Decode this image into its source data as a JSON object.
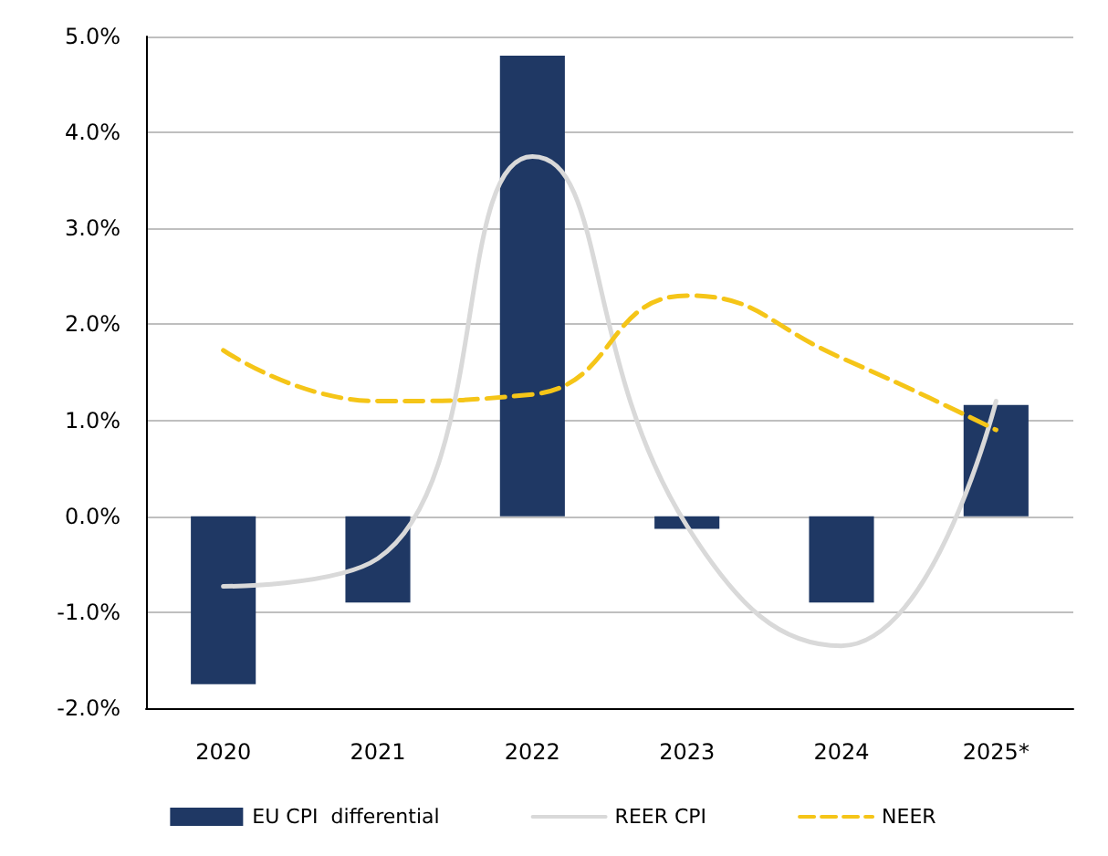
{
  "chart_data": {
    "type": "bar",
    "categories": [
      "2020",
      "2021",
      "2022",
      "2023",
      "2024",
      "2025*"
    ],
    "series": [
      {
        "name": "EU CPI  differential",
        "color": "#1f3864",
        "values": [
          -1.75,
          -0.9,
          4.8,
          -0.13,
          -0.9,
          1.16
        ]
      },
      {
        "name": "REER CPI",
        "type": "line",
        "color": "#d9d9d9",
        "line_style": "solid",
        "values": [
          -0.73,
          -0.44,
          3.75,
          -0.1,
          -1.35,
          1.2
        ]
      },
      {
        "name": "NEER",
        "type": "line",
        "color": "#f5c518",
        "line_style": "dashed",
        "values": [
          1.73,
          1.2,
          1.27,
          2.3,
          1.65,
          0.9
        ]
      }
    ],
    "ylim": [
      -2,
      5
    ],
    "yticks": [
      {
        "value": -2,
        "label": "-2.0%"
      },
      {
        "value": -1,
        "label": "-1.0%"
      },
      {
        "value": 0,
        "label": "0.0%"
      },
      {
        "value": 1,
        "label": "1.0%"
      },
      {
        "value": 2,
        "label": "2.0%"
      },
      {
        "value": 3,
        "label": "3.0%"
      },
      {
        "value": 4,
        "label": "4.0%"
      },
      {
        "value": 5,
        "label": "5.0%"
      }
    ],
    "grid": "y",
    "legend": "bottom",
    "marker": "none"
  }
}
